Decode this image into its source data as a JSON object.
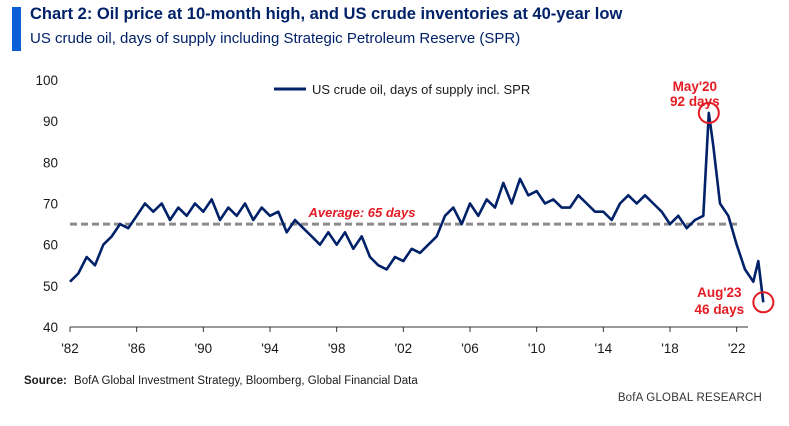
{
  "header": {
    "title": "Chart 2: Oil price at 10-month high, and US crude inventories at 40-year low",
    "subtitle": "US crude oil, days of supply including Strategic Petroleum Reserve (SPR)"
  },
  "footer": {
    "source_label": "Source:",
    "source_text": "BofA Global Investment Strategy, Bloomberg, Global Financial Data",
    "brand": "BofA GLOBAL RESEARCH"
  },
  "colors": {
    "line": "#012169",
    "average": "#8c8c8c",
    "annotation": "#e31b23",
    "accent": "#0a5fd9"
  },
  "chart_data": {
    "type": "line",
    "title": "",
    "xlabel": "",
    "ylabel": "",
    "xlim": [
      1982,
      2024
    ],
    "ylim": [
      40,
      100
    ],
    "x_ticks": [
      1982,
      1986,
      1990,
      1994,
      1998,
      2002,
      2006,
      2010,
      2014,
      2018,
      2022
    ],
    "x_tick_labels": [
      "'82",
      "'86",
      "'90",
      "'94",
      "'98",
      "'02",
      "'06",
      "'10",
      "'14",
      "'18",
      "'22"
    ],
    "y_ticks": [
      40,
      50,
      60,
      70,
      80,
      90,
      100
    ],
    "y_tick_labels": [
      "40",
      "50",
      "60",
      "70",
      "80",
      "90",
      "100"
    ],
    "grid": false,
    "legend": {
      "position": "top-center",
      "entries": [
        "US crude oil, days of supply incl. SPR"
      ]
    },
    "series": [
      {
        "name": "US crude oil, days of supply incl. SPR",
        "x": [
          1982.0,
          1982.5,
          1983.0,
          1983.5,
          1984.0,
          1984.5,
          1985.0,
          1985.5,
          1986.0,
          1986.5,
          1987.0,
          1987.5,
          1988.0,
          1988.5,
          1989.0,
          1989.5,
          1990.0,
          1990.5,
          1991.0,
          1991.5,
          1992.0,
          1992.5,
          1993.0,
          1993.5,
          1994.0,
          1994.5,
          1995.0,
          1995.5,
          1996.0,
          1996.5,
          1997.0,
          1997.5,
          1998.0,
          1998.5,
          1999.0,
          1999.5,
          2000.0,
          2000.5,
          2001.0,
          2001.5,
          2002.0,
          2002.5,
          2003.0,
          2003.5,
          2004.0,
          2004.5,
          2005.0,
          2005.5,
          2006.0,
          2006.5,
          2007.0,
          2007.5,
          2008.0,
          2008.5,
          2009.0,
          2009.5,
          2010.0,
          2010.5,
          2011.0,
          2011.5,
          2012.0,
          2012.5,
          2013.0,
          2013.5,
          2014.0,
          2014.5,
          2015.0,
          2015.5,
          2016.0,
          2016.5,
          2017.0,
          2017.5,
          2018.0,
          2018.5,
          2019.0,
          2019.5,
          2020.0,
          2020.33,
          2020.6,
          2021.0,
          2021.5,
          2022.0,
          2022.5,
          2023.0,
          2023.3,
          2023.6
        ],
        "values": [
          51,
          53,
          57,
          55,
          60,
          62,
          65,
          64,
          67,
          70,
          68,
          70,
          66,
          69,
          67,
          70,
          68,
          71,
          66,
          69,
          67,
          70,
          66,
          69,
          67,
          68,
          63,
          66,
          64,
          62,
          60,
          63,
          60,
          63,
          59,
          62,
          57,
          55,
          54,
          57,
          56,
          59,
          58,
          60,
          62,
          67,
          69,
          65,
          70,
          67,
          71,
          69,
          75,
          70,
          76,
          72,
          73,
          70,
          71,
          69,
          69,
          72,
          70,
          68,
          68,
          66,
          70,
          72,
          70,
          72,
          70,
          68,
          65,
          67,
          64,
          66,
          67,
          92,
          84,
          70,
          67,
          60,
          54,
          51,
          56,
          46
        ]
      }
    ],
    "average": {
      "value": 65,
      "label": "Average: 65 days"
    },
    "annotations": [
      {
        "x": 2020.33,
        "y": 92,
        "line1": "May'20",
        "line2": "92 days"
      },
      {
        "x": 2023.6,
        "y": 46,
        "line1": "Aug'23",
        "line2": "46 days"
      }
    ]
  }
}
